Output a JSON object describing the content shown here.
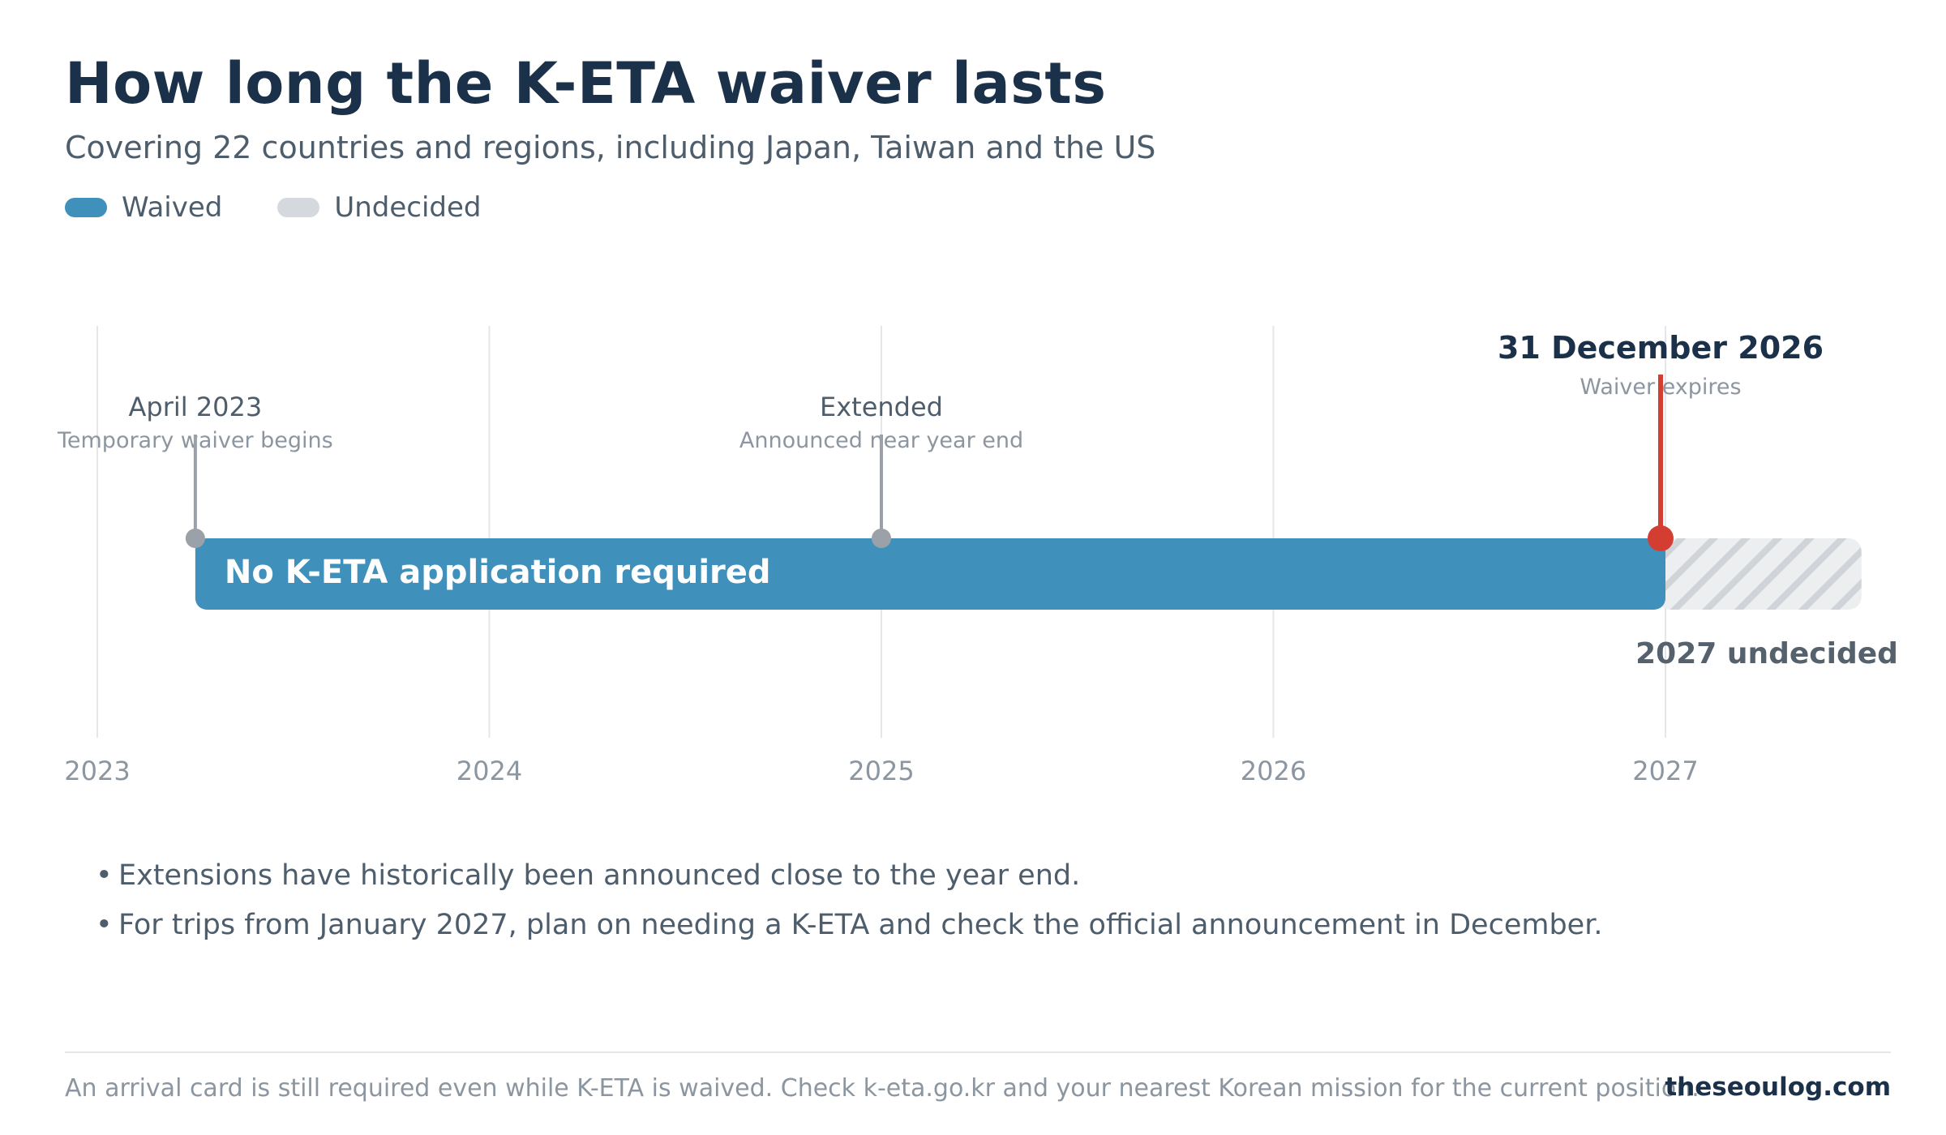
{
  "header": {
    "title": "How long the K-ETA waiver lasts",
    "subtitle": "Covering 22 countries and regions, including Japan, Taiwan and the US"
  },
  "legend": [
    {
      "label": "Waived",
      "color": "#3f91bc"
    },
    {
      "label": "Undecided",
      "color": "#d5d9de"
    }
  ],
  "timeline": {
    "axis_start": 2023,
    "axis_end": 2027.55,
    "years": [
      "2023",
      "2024",
      "2025",
      "2026",
      "2027"
    ],
    "waived_bar": {
      "start": 2023.25,
      "end": 2027.0,
      "label": "No K-ETA application required",
      "color": "#3f91bc"
    },
    "undecided_bar": {
      "start": 2027.0,
      "end": 2027.5,
      "label": "2027 undecided",
      "color": "#d5d9de"
    },
    "milestones": [
      {
        "at": 2023.25,
        "title": "April 2023",
        "detail": "Temporary waiver begins"
      },
      {
        "at": 2025.0,
        "title": "Extended",
        "detail": "Announced near year end"
      }
    ],
    "expiry": {
      "at": 2027.0,
      "title": "31 December 2026",
      "detail": "Waiver expires",
      "color": "#d43d32"
    }
  },
  "notes": [
    "Extensions have historically been announced close to the year end.",
    "For trips from January 2027, plan on needing a K-ETA and check the official announcement in December."
  ],
  "footer": {
    "note": "An arrival card is still required even while K-ETA is waived. Check k-eta.go.kr and your nearest Korean mission for the current position.",
    "brand": "theseoulog.com"
  }
}
